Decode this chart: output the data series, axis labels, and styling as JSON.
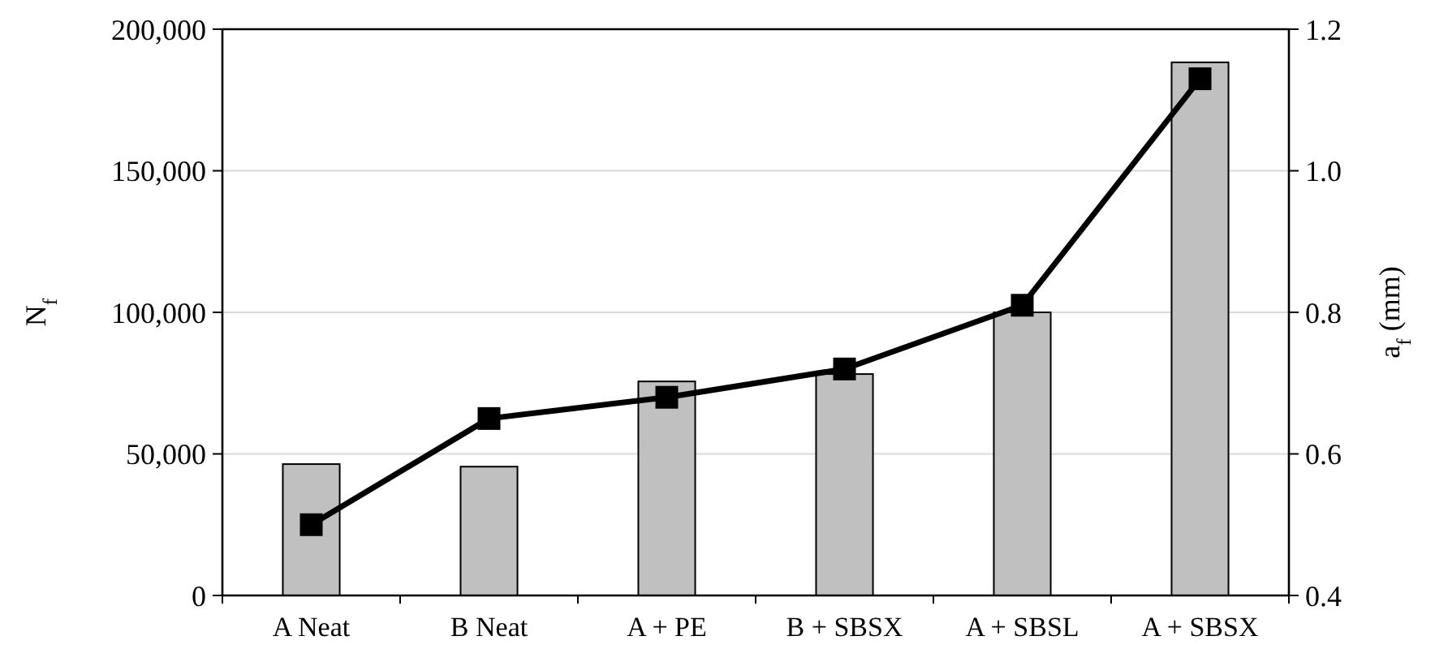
{
  "chart_data": {
    "type": "bar",
    "ylabel": "N$_{f}$",
    "y2label": "a$_{f}$ (mm)",
    "categories": [
      "A Neat",
      "B Neat",
      "A + PE",
      "B + SBSX",
      "A + SBSL",
      "A + SBSX"
    ],
    "series": [
      {
        "color": "#c0c0c0",
        "values": [
          46400,
          45500,
          75600,
          78200,
          100000,
          188300
        ]
      },
      {
        "type": "line",
        "axis": "y2",
        "color": "#000000",
        "marker": "square",
        "values": [
          0.5,
          0.65,
          0.68,
          0.72,
          0.81,
          1.13
        ]
      }
    ],
    "ylim": [
      0,
      200000
    ],
    "yticks": [
      {
        "value": 0,
        "label": "0"
      },
      {
        "value": 50000,
        "label": "50,000"
      },
      {
        "value": 100000,
        "label": "100,000"
      },
      {
        "value": 150000,
        "label": "150,000"
      },
      {
        "value": 200000,
        "label": "200,000"
      }
    ],
    "y2lim": [
      0.4,
      1.2
    ],
    "y2ticks": [
      {
        "value": 0.4,
        "label": "0.4"
      },
      {
        "value": 0.6,
        "label": "0.6"
      },
      {
        "value": 0.8,
        "label": "0.8"
      },
      {
        "value": 1.0,
        "label": "1.0"
      },
      {
        "value": 1.2,
        "label": "1.2"
      }
    ],
    "grid": "y"
  }
}
